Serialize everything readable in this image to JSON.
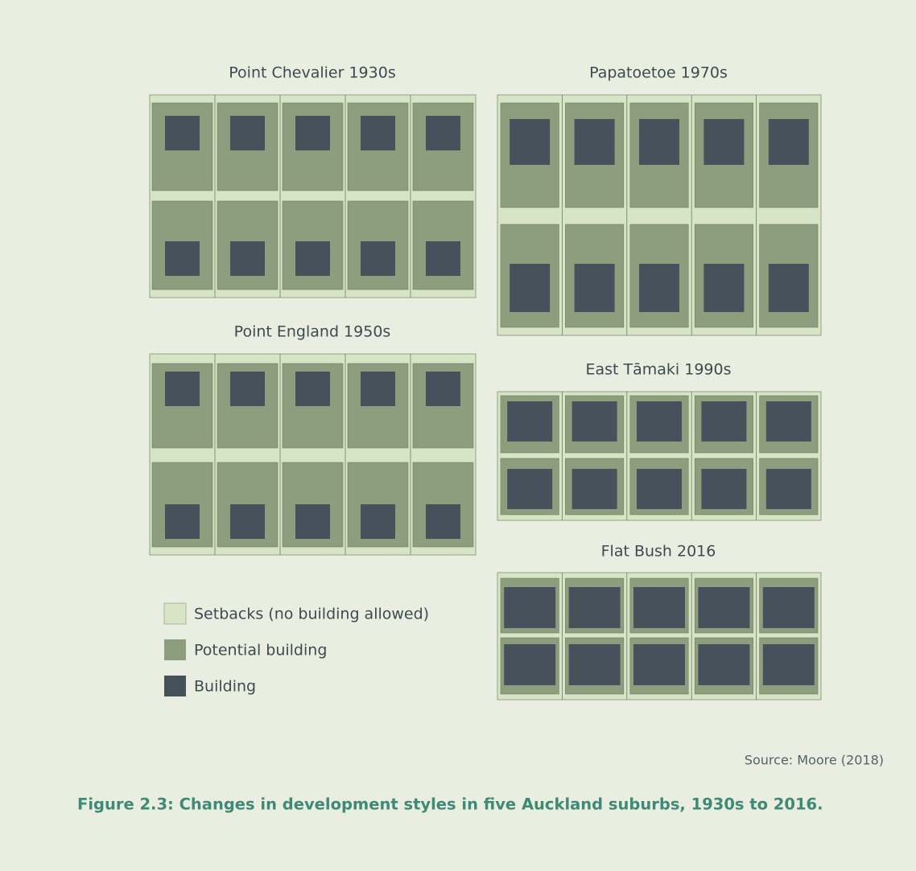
{
  "panels": [
    {
      "title": "Point Chevalier 1930s"
    },
    {
      "title": "Papatoetoe 1970s"
    },
    {
      "title": "Point England 1950s"
    },
    {
      "title": "East Tāmaki 1990s"
    },
    {
      "title": "Flat Bush 2016"
    }
  ],
  "legend": [
    {
      "label": "Setbacks (no building allowed)"
    },
    {
      "label": "Potential building"
    },
    {
      "label": "Building"
    }
  ],
  "source": "Source: Moore (2018)",
  "caption": "Figure 2.3: Changes in development styles in five Auckland suburbs, 1930s to 2016."
}
